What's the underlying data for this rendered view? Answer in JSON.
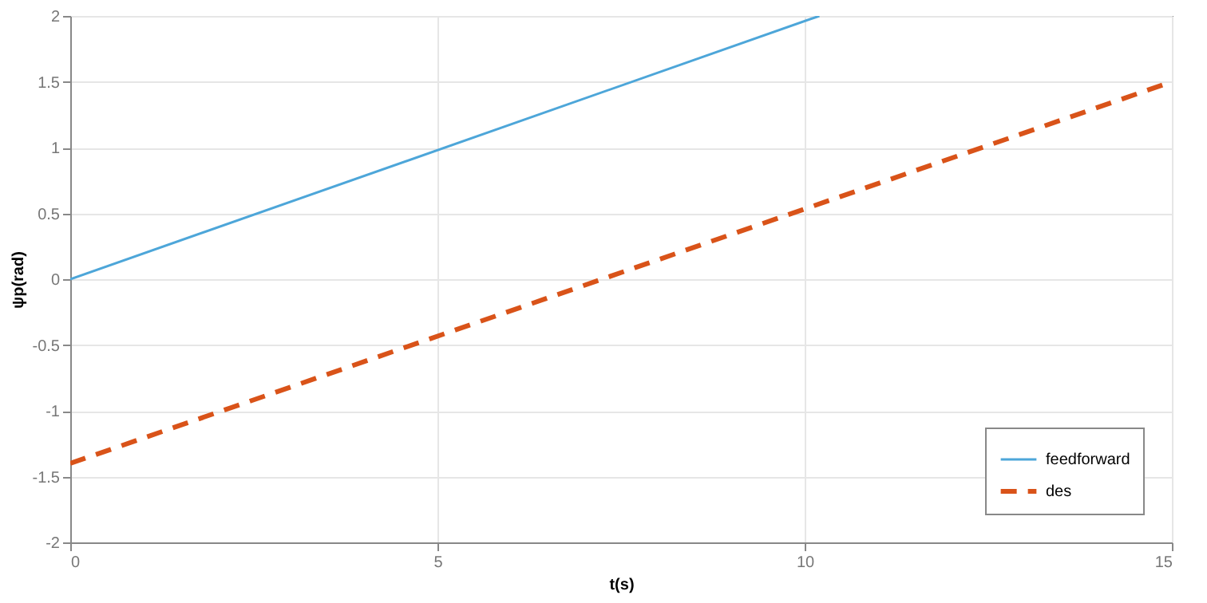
{
  "chart_data": {
    "type": "line",
    "xlabel": "t(s)",
    "ylabel": "ψp(rad)",
    "xlim": [
      0,
      15
    ],
    "xticks": [
      0,
      5,
      10,
      15
    ],
    "ylim": [
      -2,
      2
    ],
    "yticks": [
      -2,
      -1.5,
      -1,
      -0.5,
      0,
      0.5,
      1,
      1.5,
      2
    ],
    "grid": true,
    "legend": "bottom right",
    "series": [
      {
        "name": "feedforward",
        "color": "#4da6d9",
        "x": [
          0,
          10.2
        ],
        "values": [
          0,
          2
        ],
        "line_style": "solid"
      },
      {
        "name": "des",
        "color": "#d95319",
        "x": [
          0,
          15
        ],
        "values": [
          -1.4,
          1.5
        ],
        "line_style": "dashed"
      }
    ]
  }
}
